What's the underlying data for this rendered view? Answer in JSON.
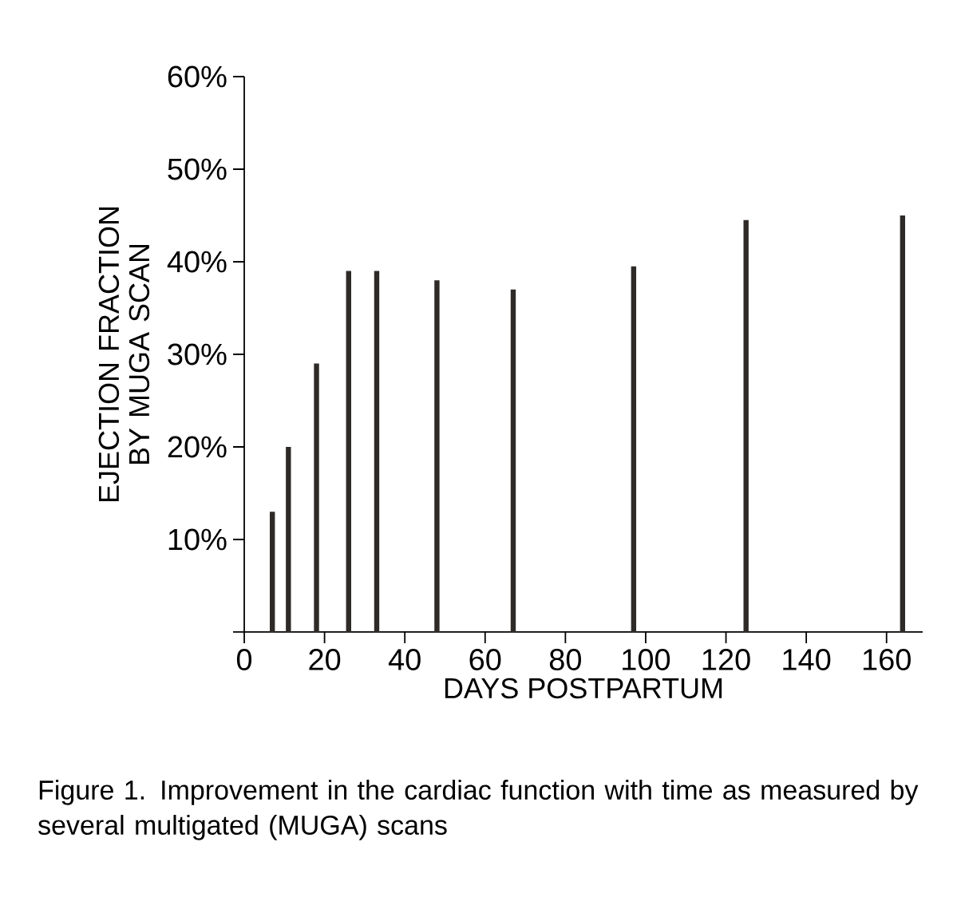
{
  "chart_data": {
    "type": "bar",
    "xlabel": "DAYS POSTPARTUM",
    "ylabel": "EJECTION FRACTION BY MUGA SCAN",
    "x": [
      7,
      11,
      18,
      26,
      33,
      48,
      67,
      97,
      125,
      164
    ],
    "values": [
      13,
      20,
      29,
      39,
      39,
      38,
      37,
      39.5,
      44.5,
      45
    ],
    "color": "#2e2a28",
    "xlim": [
      0,
      169
    ],
    "xticks": [
      0,
      20,
      40,
      60,
      80,
      100,
      120,
      140,
      160
    ],
    "ylim": [
      0,
      60
    ],
    "yticks": [
      {
        "value": 0,
        "label": null
      },
      {
        "value": 10,
        "label": "10%"
      },
      {
        "value": 20,
        "label": "20%"
      },
      {
        "value": 30,
        "label": "30%"
      },
      {
        "value": 40,
        "label": "40%"
      },
      {
        "value": 50,
        "label": "50%"
      },
      {
        "value": 60,
        "label": "60%"
      }
    ],
    "grid": false,
    "annotations": [
      "Figure 1. Improvement in the cardiac function with time as measured by several multigated (MUGA) scans"
    ]
  }
}
